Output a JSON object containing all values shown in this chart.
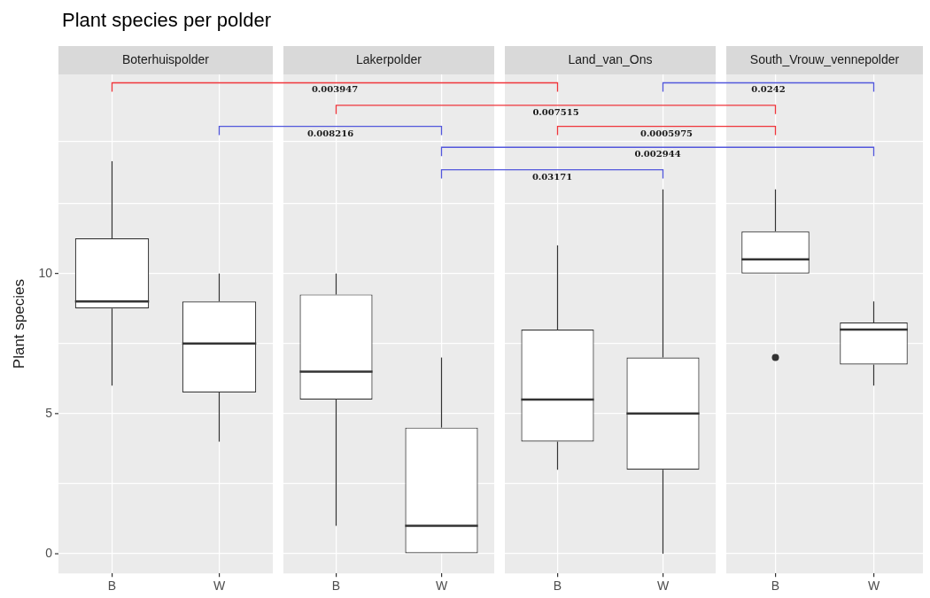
{
  "chart_data": [
    {
      "type": "box",
      "title": "Plant species per polder",
      "subtitle": "Boterhuispolder",
      "ylabel": "Plant species",
      "categories": [
        "B",
        "W"
      ],
      "color": "#333333",
      "boxes": [
        {
          "low": 6,
          "q1": 8.75,
          "median": 9,
          "q3": 11.25,
          "high": 14
        },
        {
          "low": 4,
          "q1": 5.75,
          "median": 7.5,
          "q3": 9,
          "high": 10
        }
      ],
      "ylim": [
        -0.7,
        17.1
      ],
      "yticks": [
        0,
        {
          "value": 2.5,
          "label": null
        },
        5,
        {
          "value": 7.5,
          "label": null
        },
        10,
        {
          "value": 12.5,
          "label": null
        },
        {
          "value": 14.7,
          "label": null
        }
      ],
      "grid": true,
      "annotations": [
        "0.003947",
        "0.0242",
        "0.007515",
        "0.008216",
        "0.0005975",
        "0.002944",
        "0.03171"
      ]
    },
    {
      "type": "box",
      "subtitle": "Lakerpolder",
      "categories": [
        "B",
        "W"
      ],
      "color": "#333333",
      "boxes": [
        {
          "low": 1,
          "q1": 5.5,
          "median": 6.5,
          "q3": 9.25,
          "high": 10
        },
        {
          "low": 0,
          "q1": 0,
          "median": 1,
          "q3": 4.5,
          "high": 7
        }
      ],
      "ylim": [
        -0.7,
        17.1
      ],
      "yticks": [
        0,
        {
          "value": 2.5,
          "label": null
        },
        5,
        {
          "value": 7.5,
          "label": null
        },
        10,
        {
          "value": 12.5,
          "label": null
        },
        {
          "value": 14.7,
          "label": null
        }
      ],
      "grid": true,
      "tick_labels": "x"
    },
    {
      "type": "box",
      "subtitle": "Land_van_Ons",
      "categories": [
        "B",
        "W"
      ],
      "color": "#333333",
      "boxes": [
        {
          "low": 3,
          "q1": 4,
          "median": 5.5,
          "q3": 8,
          "high": 11
        },
        {
          "low": 0,
          "q1": 3,
          "median": 5,
          "q3": 7,
          "high": 13
        }
      ],
      "ylim": [
        -0.7,
        17.1
      ],
      "yticks": [
        0,
        {
          "value": 2.5,
          "label": null
        },
        5,
        {
          "value": 7.5,
          "label": null
        },
        10,
        {
          "value": 12.5,
          "label": null
        },
        {
          "value": 14.7,
          "label": null
        }
      ],
      "grid": true,
      "tick_labels": "x"
    },
    {
      "type": "box",
      "subtitle": "South_Vrouw_vennepolder",
      "categories": [
        "B",
        "W"
      ],
      "color": "#333333",
      "boxes": [
        {
          "low": 10,
          "q1": 10,
          "median": 10.5,
          "q3": 11.5,
          "high": 13,
          "outliers": [
            7
          ]
        },
        {
          "low": 6,
          "q1": 6.75,
          "median": 8,
          "q3": 8.25,
          "high": 9
        }
      ],
      "ylim": [
        -0.7,
        17.1
      ],
      "yticks": [
        0,
        {
          "value": 2.5,
          "label": null
        },
        5,
        {
          "value": 7.5,
          "label": null
        },
        10,
        {
          "value": 12.5,
          "label": null
        },
        {
          "value": 14.7,
          "label": null
        }
      ],
      "grid": true,
      "tick_labels": "x"
    }
  ]
}
